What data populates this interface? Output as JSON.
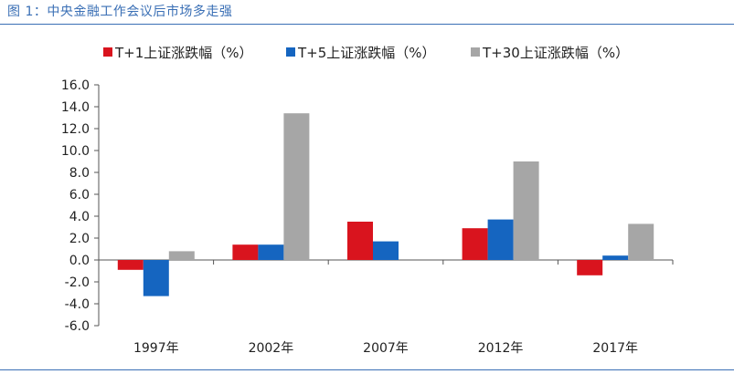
{
  "header": {
    "title": "图 1：中央金融工作会议后市场多走强"
  },
  "chart_data": {
    "type": "bar",
    "categories": [
      "1997年",
      "2002年",
      "2007年",
      "2012年",
      "2017年"
    ],
    "series": [
      {
        "name": "T+1上证涨跌幅（%）",
        "color": "#d9141e",
        "values": [
          -0.9,
          1.4,
          3.5,
          2.9,
          -1.4
        ]
      },
      {
        "name": "T+5上证涨跌幅（%）",
        "color": "#1565c0",
        "values": [
          -3.3,
          1.4,
          1.7,
          3.7,
          0.4
        ]
      },
      {
        "name": "T+30上证涨跌幅（%）",
        "color": "#a6a6a6",
        "values": [
          0.8,
          13.4,
          0.0,
          9.0,
          3.3
        ]
      }
    ],
    "ylim": [
      -6,
      16
    ],
    "yticks": [
      "16.0",
      "14.0",
      "12.0",
      "10.0",
      "8.0",
      "6.0",
      "4.0",
      "2.0",
      "0.0",
      "-2.0",
      "-4.0",
      "-6.0"
    ],
    "legend_position": "top",
    "grid": false
  }
}
